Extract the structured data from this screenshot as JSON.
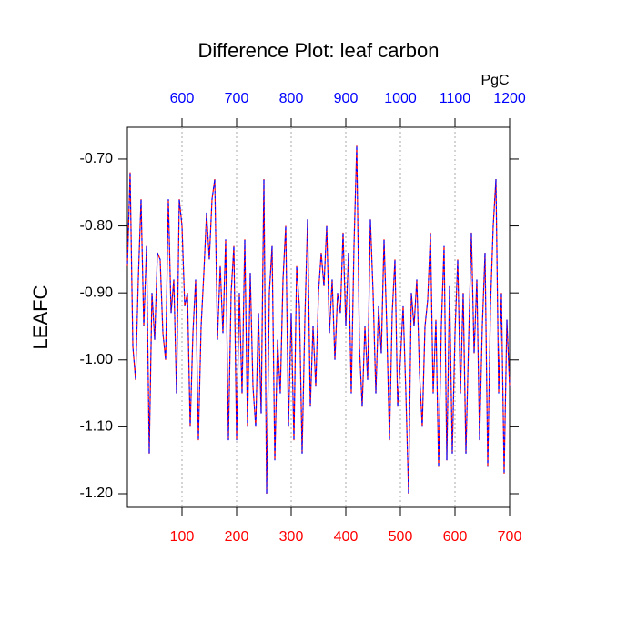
{
  "chart_data": {
    "type": "line",
    "title": "Difference Plot: leaf carbon",
    "ylabel": "LEAFC",
    "x2label": "PgC",
    "xlim": [
      0,
      700
    ],
    "xticks": [
      100,
      200,
      300,
      400,
      500,
      600,
      700
    ],
    "xtick_color": "#ff0000",
    "x2lim": [
      500,
      1200
    ],
    "x2ticks": [
      600,
      700,
      800,
      900,
      1000,
      1100,
      1200
    ],
    "x2tick_color": "#0000ff",
    "ylim": [
      -1.2204,
      -0.6525
    ],
    "yticks": [
      {
        "value": -0.7,
        "label": "-0.70"
      },
      {
        "value": -0.8,
        "label": "-0.80"
      },
      {
        "value": -0.9,
        "label": "-0.90"
      },
      {
        "value": -1.0,
        "label": "-1.00"
      },
      {
        "value": -1.1,
        "label": "-1.10"
      },
      {
        "value": -1.2,
        "label": "-1.20"
      }
    ],
    "grid": true,
    "line_colors": [
      "#ff0000",
      "#0000ff"
    ],
    "dashed": true,
    "x": [
      0,
      5,
      10,
      15,
      20,
      25,
      30,
      35,
      40,
      45,
      50,
      55,
      60,
      65,
      70,
      75,
      80,
      85,
      90,
      95,
      100,
      105,
      110,
      115,
      120,
      125,
      130,
      135,
      140,
      145,
      150,
      155,
      160,
      165,
      170,
      175,
      180,
      185,
      190,
      195,
      200,
      205,
      210,
      215,
      220,
      225,
      230,
      235,
      240,
      245,
      250,
      255,
      260,
      265,
      270,
      275,
      280,
      285,
      290,
      295,
      300,
      305,
      310,
      315,
      320,
      325,
      330,
      335,
      340,
      345,
      350,
      355,
      360,
      365,
      370,
      375,
      380,
      385,
      390,
      395,
      400,
      405,
      410,
      415,
      420,
      425,
      430,
      435,
      440,
      445,
      450,
      455,
      460,
      465,
      470,
      475,
      480,
      485,
      490,
      495,
      500,
      505,
      510,
      515,
      520,
      525,
      530,
      535,
      540,
      545,
      550,
      555,
      560,
      565,
      570,
      575,
      580,
      585,
      590,
      595,
      600,
      605,
      610,
      615,
      620,
      625,
      630,
      635,
      640,
      645,
      650,
      655,
      660,
      665,
      670,
      675,
      680,
      685,
      690,
      695,
      700
    ],
    "values": [
      -0.86,
      -0.72,
      -0.98,
      -1.03,
      -0.88,
      -0.76,
      -0.95,
      -0.83,
      -1.14,
      -0.9,
      -0.97,
      -0.84,
      -0.85,
      -0.96,
      -1.0,
      -0.76,
      -0.93,
      -0.88,
      -1.05,
      -0.76,
      -0.8,
      -0.92,
      -0.9,
      -1.1,
      -0.96,
      -0.88,
      -1.12,
      -0.95,
      -0.87,
      -0.78,
      -0.85,
      -0.76,
      -0.73,
      -0.97,
      -0.86,
      -0.96,
      -0.82,
      -1.12,
      -0.9,
      -0.83,
      -1.12,
      -0.9,
      -1.05,
      -0.82,
      -1.1,
      -0.87,
      -1.04,
      -1.1,
      -0.93,
      -1.08,
      -0.73,
      -1.2,
      -0.9,
      -0.83,
      -1.15,
      -0.97,
      -1.05,
      -0.88,
      -0.8,
      -1.1,
      -0.93,
      -1.12,
      -0.86,
      -0.92,
      -1.14,
      -0.94,
      -0.79,
      -1.07,
      -0.95,
      -1.04,
      -0.9,
      -0.84,
      -0.89,
      -0.8,
      -0.96,
      -0.88,
      -1.0,
      -0.9,
      -0.93,
      -0.81,
      -0.95,
      -0.84,
      -1.05,
      -0.83,
      -0.68,
      -0.98,
      -1.07,
      -0.95,
      -1.03,
      -0.79,
      -0.9,
      -1.05,
      -0.92,
      -0.99,
      -0.82,
      -0.95,
      -1.12,
      -0.93,
      -0.85,
      -1.07,
      -1.0,
      -0.92,
      -1.05,
      -1.2,
      -0.9,
      -0.95,
      -0.88,
      -1.02,
      -1.1,
      -0.95,
      -0.91,
      -0.81,
      -1.05,
      -0.94,
      -1.16,
      -0.95,
      -0.83,
      -1.15,
      -0.89,
      -1.14,
      -0.96,
      -0.85,
      -1.05,
      -0.9,
      -1.14,
      -0.97,
      -0.81,
      -0.99,
      -0.88,
      -1.12,
      -0.95,
      -0.84,
      -1.16,
      -0.92,
      -0.8,
      -0.73,
      -1.05,
      -0.9,
      -1.17,
      -0.94,
      -1.04
    ]
  }
}
